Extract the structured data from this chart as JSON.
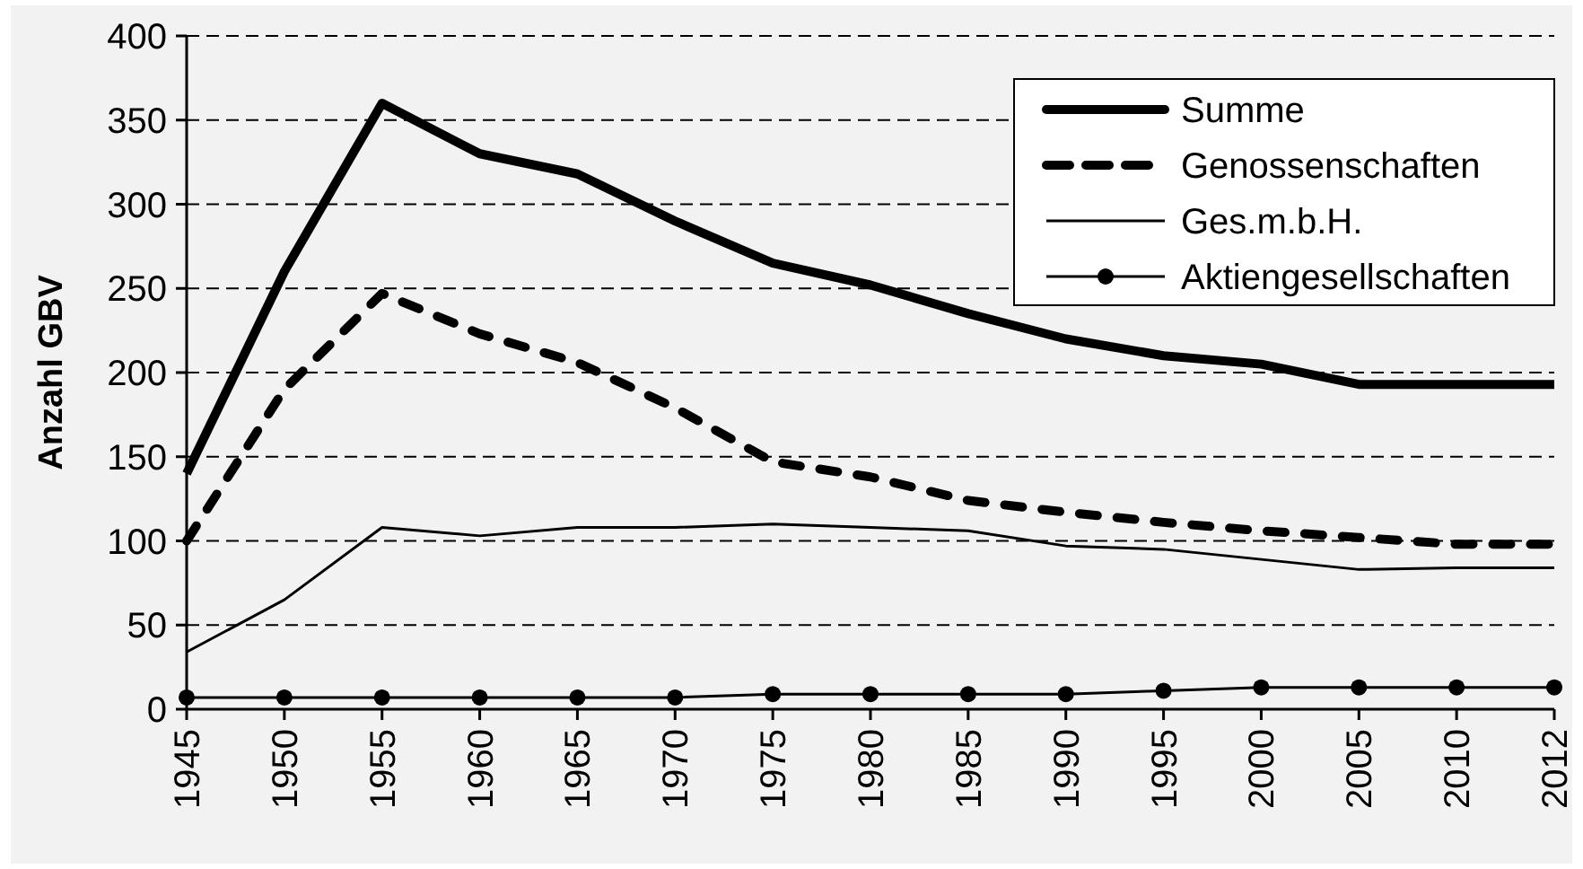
{
  "chart_data": {
    "type": "line",
    "ylabel": "Anzahl GBV",
    "categories": [
      "1945",
      "1950",
      "1955",
      "1960",
      "1965",
      "1970",
      "1975",
      "1980",
      "1985",
      "1990",
      "1995",
      "2000",
      "2005",
      "2010",
      "2012"
    ],
    "ylim": [
      0,
      400
    ],
    "yticks": [
      0,
      50,
      100,
      150,
      200,
      250,
      300,
      350,
      400
    ],
    "grid": "y",
    "legend": "top right",
    "line_style": "solid",
    "series": [
      {
        "name": "Summe",
        "color": "#000000",
        "values": [
          140,
          260,
          360,
          330,
          318,
          290,
          265,
          252,
          235,
          220,
          210,
          205,
          193,
          193,
          193
        ]
      },
      {
        "name": "Genossenschaften",
        "color": "#000000",
        "line_style": "dashed",
        "values": [
          100,
          190,
          247,
          223,
          206,
          179,
          147,
          138,
          124,
          117,
          111,
          106,
          102,
          98,
          98
        ]
      },
      {
        "name": "Ges.m.b.H.",
        "color": "#000000",
        "values": [
          34,
          65,
          108,
          103,
          108,
          108,
          110,
          108,
          106,
          97,
          95,
          89,
          83,
          84,
          84
        ]
      },
      {
        "name": "Aktiengesellschaften",
        "color": "#000000",
        "marker": "circle",
        "values": [
          7,
          7,
          7,
          7,
          7,
          7,
          9,
          9,
          9,
          9,
          11,
          13,
          13,
          13,
          13
        ]
      }
    ]
  }
}
